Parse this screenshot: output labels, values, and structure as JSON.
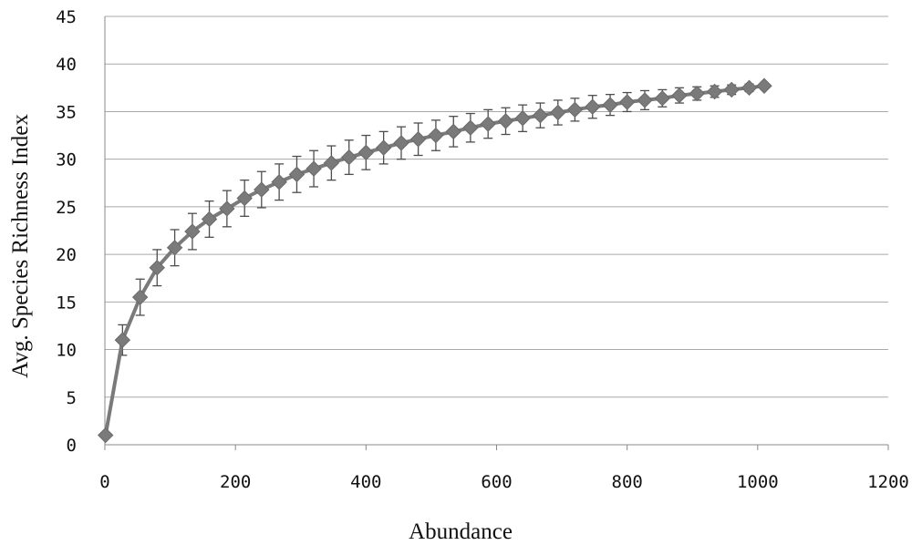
{
  "chart_data": {
    "type": "line",
    "xlabel": "Abundance",
    "ylabel": "Avg. Species Richness Index",
    "xlim": [
      0,
      1200
    ],
    "ylim": [
      0,
      45
    ],
    "x_ticks": [
      0,
      200,
      400,
      600,
      800,
      1000,
      1200
    ],
    "y_ticks": [
      0,
      5,
      10,
      15,
      20,
      25,
      30,
      35,
      40,
      45
    ],
    "grid": "horizontal",
    "colors": {
      "series": "#7a7a7a",
      "error_bar": "#4d4d4d",
      "grid": "#a8a8a8"
    },
    "series": [
      {
        "marker": "diamond",
        "x": [
          1,
          27,
          54,
          80,
          107,
          134,
          160,
          187,
          214,
          240,
          267,
          294,
          320,
          347,
          374,
          400,
          427,
          454,
          480,
          507,
          534,
          560,
          587,
          614,
          640,
          667,
          694,
          720,
          747,
          774,
          800,
          827,
          854,
          880,
          907,
          934,
          960,
          987,
          1010
        ],
        "y": [
          1,
          11,
          15.5,
          18.6,
          20.7,
          22.4,
          23.7,
          24.8,
          25.9,
          26.8,
          27.6,
          28.4,
          29.0,
          29.6,
          30.2,
          30.7,
          31.2,
          31.7,
          32.1,
          32.5,
          32.9,
          33.3,
          33.7,
          34.0,
          34.3,
          34.6,
          34.9,
          35.2,
          35.5,
          35.7,
          36.0,
          36.2,
          36.4,
          36.7,
          36.9,
          37.1,
          37.3,
          37.5,
          37.7
        ],
        "error": [
          0,
          1.6,
          1.9,
          1.9,
          1.9,
          1.9,
          1.9,
          1.9,
          1.9,
          1.9,
          1.9,
          1.9,
          1.9,
          1.8,
          1.8,
          1.8,
          1.7,
          1.7,
          1.7,
          1.6,
          1.6,
          1.5,
          1.5,
          1.4,
          1.4,
          1.3,
          1.3,
          1.2,
          1.2,
          1.1,
          1.0,
          1.0,
          0.9,
          0.8,
          0.7,
          0.6,
          0.5,
          0.4,
          0.3
        ]
      }
    ]
  }
}
